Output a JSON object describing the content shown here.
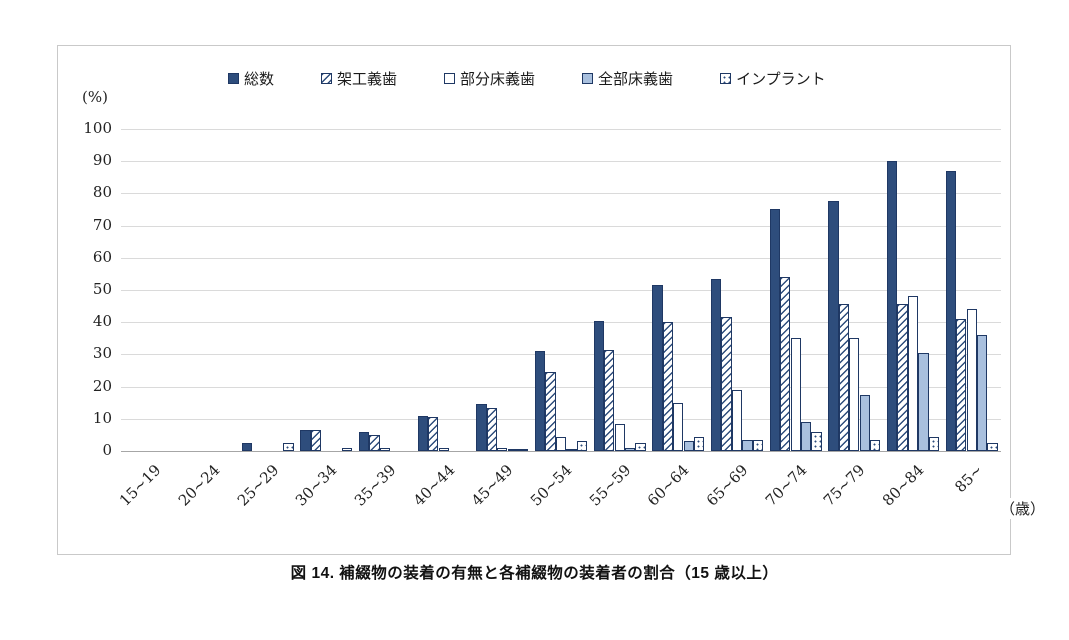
{
  "figure": {
    "y_axis_unit": "(%)",
    "x_axis_unit": "（歳）",
    "caption": "図 14.  補綴物の装着の有無と各補綴物の装着者の割合（15 歳以上）"
  },
  "colors": {
    "series_dark": "#2e4d7c",
    "series_light": "#a9c0de",
    "bar_border": "#1f3864",
    "gridline": "#dadada",
    "chart_border": "#c9c9c9"
  },
  "chart_data": {
    "type": "bar",
    "title": "",
    "xlabel": "（歳）",
    "ylabel": "(%)",
    "ylim": [
      0,
      100
    ],
    "ytick_step": 10,
    "grid": true,
    "legend_position": "top",
    "categories": [
      "15~19",
      "20~24",
      "25~29",
      "30~34",
      "35~39",
      "40~44",
      "45~49",
      "50~54",
      "55~59",
      "60~64",
      "65~69",
      "70~74",
      "75~79",
      "80~84",
      "85~"
    ],
    "series": [
      {
        "name": "総数",
        "style": "solid-dark",
        "values": [
          0,
          0,
          2.5,
          6.5,
          6,
          11,
          14.5,
          31,
          40.5,
          51.5,
          53.5,
          75,
          77.5,
          90,
          87
        ]
      },
      {
        "name": "架工義歯",
        "style": "hatch",
        "values": [
          0,
          0,
          0,
          6.5,
          5,
          10.5,
          13.5,
          24.5,
          31.5,
          40,
          41.5,
          54,
          45.5,
          45.5,
          41
        ]
      },
      {
        "name": "部分床義歯",
        "style": "white",
        "values": [
          0,
          0,
          0,
          0,
          1,
          1,
          1,
          4.5,
          8.5,
          15,
          19,
          35,
          35,
          48,
          44
        ]
      },
      {
        "name": "全部床義歯",
        "style": "solid-light",
        "values": [
          0,
          0,
          0,
          0,
          0,
          0,
          0.5,
          0.5,
          1,
          3,
          3.5,
          9,
          17.5,
          30.5,
          36
        ]
      },
      {
        "name": "インプラント",
        "style": "dots",
        "values": [
          0,
          0,
          2.5,
          1,
          0,
          0,
          0.5,
          3,
          2.5,
          4.5,
          3.5,
          6,
          3.5,
          4.5,
          2.5
        ]
      }
    ]
  }
}
